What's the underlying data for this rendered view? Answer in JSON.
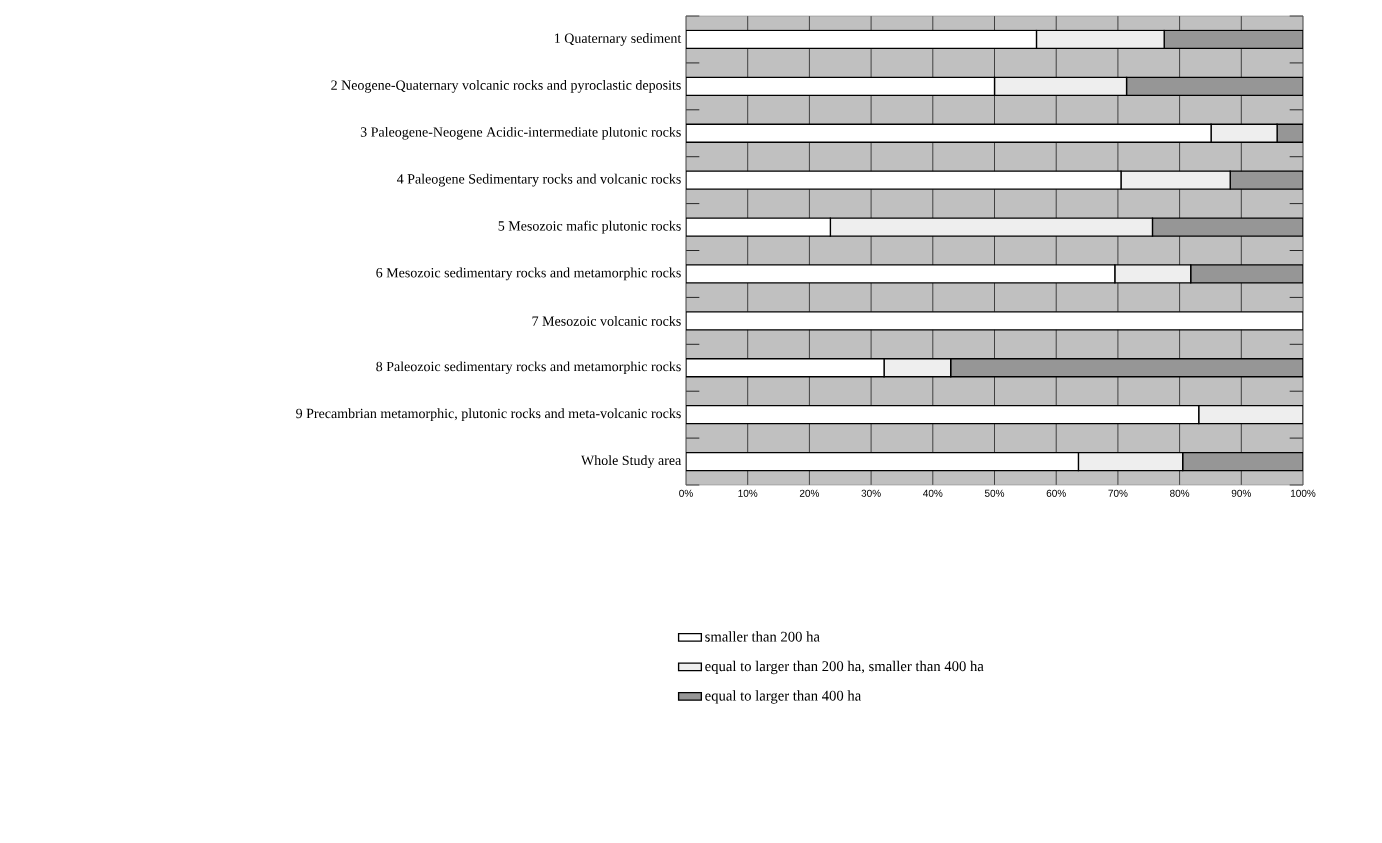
{
  "chart_data": {
    "type": "bar",
    "orientation": "horizontal",
    "stacked": true,
    "categories": [
      "1 Quaternary sediment",
      "2 Neogene-Quaternary volcanic rocks and pyroclastic deposits",
      "3 Paleogene-Neogene Acidic-intermediate plutonic rocks",
      "4 Paleogene Sedimentary rocks and volcanic rocks",
      "5 Mesozoic mafic plutonic rocks",
      "6 Mesozoic sedimentary rocks and metamorphic rocks",
      "7 Mesozoic volcanic rocks",
      "8 Paleozoic sedimentary rocks and metamorphic rocks",
      "9 Precambrian metamorphic, plutonic rocks and meta-volcanic rocks",
      "Whole Study area"
    ],
    "series": [
      {
        "name": "smaller than 200 ha",
        "color": "#ffffff",
        "values": [
          56.8,
          50.0,
          85.1,
          70.5,
          23.4,
          69.5,
          100,
          32.1,
          83.1,
          63.6
        ]
      },
      {
        "name": "equal to larger than 200 ha, smaller than 400 ha",
        "color": "#eeeeee",
        "values": [
          20.7,
          21.4,
          10.7,
          17.7,
          52.2,
          12.3,
          0,
          10.8,
          16.9,
          16.9
        ]
      },
      {
        "name": "equal to larger than 400 ha",
        "color": "#969696",
        "values": [
          22.5,
          28.6,
          4.2,
          11.8,
          24.4,
          18.2,
          0,
          57.1,
          0,
          19.5
        ]
      }
    ],
    "xlim": [
      0,
      100
    ],
    "xticks": [
      {
        "value": 0,
        "label": "0%"
      },
      {
        "value": 10,
        "label": "10%"
      },
      {
        "value": 20,
        "label": "20%"
      },
      {
        "value": 30,
        "label": "30%"
      },
      {
        "value": 40,
        "label": "40%"
      },
      {
        "value": 50,
        "label": "50%"
      },
      {
        "value": 60,
        "label": "60%"
      },
      {
        "value": 70,
        "label": "70%"
      },
      {
        "value": 80,
        "label": "80%"
      },
      {
        "value": 90,
        "label": "90%"
      },
      {
        "value": 100,
        "label": "100%"
      }
    ],
    "grid": "x",
    "legend": "bottom"
  }
}
